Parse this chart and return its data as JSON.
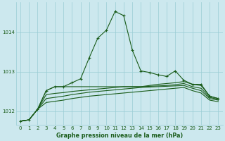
{
  "bg_color": "#cce8ee",
  "grid_color": "#99ccd4",
  "line_color": "#1a5c1a",
  "xlabel": "Graphe pression niveau de la mer (hPa)",
  "ylim": [
    1011.65,
    1014.75
  ],
  "xlim": [
    -0.5,
    23.5
  ],
  "yticks": [
    1012,
    1013,
    1014
  ],
  "xticks": [
    0,
    1,
    2,
    3,
    4,
    5,
    6,
    7,
    8,
    9,
    10,
    11,
    12,
    13,
    14,
    15,
    16,
    17,
    18,
    19,
    20,
    21,
    22,
    23
  ],
  "line_main": [
    1011.75,
    1011.78,
    1012.05,
    1012.52,
    1012.62,
    1012.62,
    1012.72,
    1012.82,
    1013.35,
    1013.85,
    1014.05,
    1014.52,
    1014.42,
    1013.55,
    1013.02,
    1012.98,
    1012.92,
    1012.88,
    1013.02,
    1012.78,
    1012.68,
    1012.68,
    1012.38,
    1012.32
  ],
  "line_a": [
    1011.75,
    1011.78,
    1012.05,
    1012.52,
    1012.62,
    1012.62,
    1012.62,
    1012.62,
    1012.62,
    1012.62,
    1012.62,
    1012.62,
    1012.62,
    1012.62,
    1012.62,
    1012.65,
    1012.68,
    1012.7,
    1012.72,
    1012.75,
    1012.68,
    1012.65,
    1012.38,
    1012.32
  ],
  "line_b": [
    1011.75,
    1011.78,
    1012.05,
    1012.42,
    1012.45,
    1012.47,
    1012.5,
    1012.52,
    1012.54,
    1012.56,
    1012.58,
    1012.6,
    1012.62,
    1012.62,
    1012.62,
    1012.63,
    1012.64,
    1012.65,
    1012.67,
    1012.7,
    1012.62,
    1012.58,
    1012.35,
    1012.3
  ],
  "line_c": [
    1011.75,
    1011.78,
    1012.05,
    1012.32,
    1012.35,
    1012.38,
    1012.42,
    1012.45,
    1012.48,
    1012.5,
    1012.52,
    1012.54,
    1012.56,
    1012.58,
    1012.6,
    1012.61,
    1012.62,
    1012.63,
    1012.64,
    1012.65,
    1012.58,
    1012.52,
    1012.32,
    1012.28
  ],
  "line_d": [
    1011.75,
    1011.78,
    1012.05,
    1012.22,
    1012.25,
    1012.28,
    1012.32,
    1012.35,
    1012.38,
    1012.4,
    1012.42,
    1012.44,
    1012.46,
    1012.48,
    1012.5,
    1012.52,
    1012.54,
    1012.56,
    1012.58,
    1012.6,
    1012.52,
    1012.46,
    1012.28,
    1012.24
  ]
}
